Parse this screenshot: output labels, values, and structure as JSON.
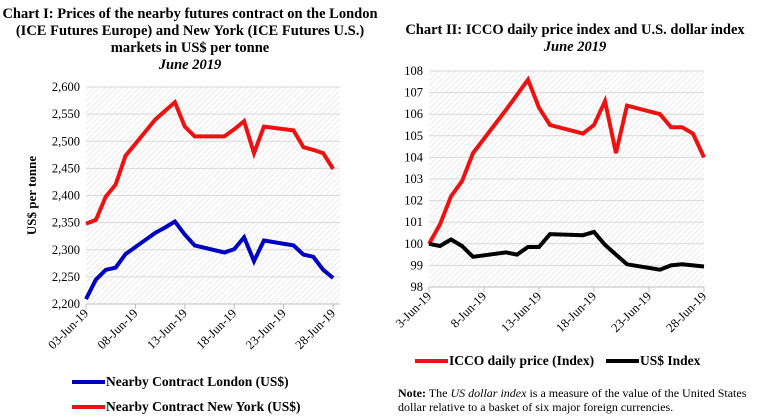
{
  "chart_data": [
    {
      "type": "line",
      "title": "Chart I: Prices of the nearby futures contract on the London (ICE Futures Europe) and New York (ICE Futures U.S.) markets in US$ per tonne",
      "subtitle": "June 2019",
      "xlabel": "",
      "ylabel": "US$ per tonne",
      "ylim": [
        2200,
        2600
      ],
      "yticks": [
        "2,200",
        "2,250",
        "2,300",
        "2,350",
        "2,400",
        "2,450",
        "2,500",
        "2,550",
        "2,600"
      ],
      "ytick_values": [
        2200,
        2250,
        2300,
        2350,
        2400,
        2450,
        2500,
        2550,
        2600
      ],
      "xticks": [
        "03-Jun-19",
        "08-Jun-19",
        "13-Jun-19",
        "18-Jun-19",
        "23-Jun-19",
        "28-Jun-19"
      ],
      "xtick_values": [
        "2019-06-03",
        "2019-06-08",
        "2019-06-13",
        "2019-06-18",
        "2019-06-23",
        "2019-06-28"
      ],
      "grid": "horizontal",
      "legend_placement": "bottom",
      "x": [
        "2019-06-03",
        "2019-06-04",
        "2019-06-05",
        "2019-06-06",
        "2019-06-07",
        "2019-06-10",
        "2019-06-11",
        "2019-06-12",
        "2019-06-13",
        "2019-06-14",
        "2019-06-17",
        "2019-06-18",
        "2019-06-19",
        "2019-06-20",
        "2019-06-21",
        "2019-06-24",
        "2019-06-25",
        "2019-06-26",
        "2019-06-27",
        "2019-06-28"
      ],
      "series": [
        {
          "name": "Nearby Contract London (US$)",
          "color": "#0000c0",
          "values": [
            2209,
            2245,
            2263,
            2267,
            2292,
            2331,
            2341,
            2352,
            2328,
            2308,
            2295,
            2301,
            2323,
            2279,
            2317,
            2308,
            2291,
            2287,
            2263,
            2248
          ]
        },
        {
          "name": "Nearby Contract New York (US$)",
          "color": "#ee1111",
          "values": [
            2348,
            2355,
            2398,
            2420,
            2473,
            2540,
            2556,
            2572,
            2527,
            2509,
            2509,
            2522,
            2537,
            2478,
            2527,
            2520,
            2489,
            2484,
            2478,
            2449
          ]
        }
      ]
    },
    {
      "type": "line",
      "title": "Chart II: ICCO daily price index and U.S. dollar index",
      "subtitle": "June 2019",
      "xlabel": "",
      "ylabel": "",
      "ylim": [
        98,
        108
      ],
      "yticks": [
        "98",
        "99",
        "100",
        "101",
        "102",
        "103",
        "104",
        "105",
        "106",
        "107",
        "108"
      ],
      "ytick_values": [
        98,
        99,
        100,
        101,
        102,
        103,
        104,
        105,
        106,
        107,
        108
      ],
      "xticks": [
        "3-Jun-19",
        "8-Jun-19",
        "13-Jun-19",
        "18-Jun-19",
        "23-Jun-19",
        "28-Jun-19"
      ],
      "xtick_values": [
        "2019-06-03",
        "2019-06-08",
        "2019-06-13",
        "2019-06-18",
        "2019-06-23",
        "2019-06-28"
      ],
      "grid": "horizontal",
      "legend_placement": "bottom",
      "x": [
        "2019-06-03",
        "2019-06-04",
        "2019-06-05",
        "2019-06-06",
        "2019-06-07",
        "2019-06-10",
        "2019-06-11",
        "2019-06-12",
        "2019-06-13",
        "2019-06-14",
        "2019-06-17",
        "2019-06-18",
        "2019-06-19",
        "2019-06-20",
        "2019-06-21",
        "2019-06-24",
        "2019-06-25",
        "2019-06-26",
        "2019-06-27",
        "2019-06-28"
      ],
      "series": [
        {
          "name": "ICCO daily price (Index)",
          "color": "#ee1111",
          "values": [
            100.0,
            100.9,
            102.2,
            102.9,
            104.2,
            106.2,
            106.9,
            107.6,
            106.3,
            105.5,
            105.1,
            105.5,
            106.6,
            104.2,
            106.4,
            106.0,
            105.4,
            105.4,
            105.1,
            104.0
          ]
        },
        {
          "name": "US$ Index",
          "color": "#000000",
          "values": [
            100.0,
            99.9,
            100.2,
            99.9,
            99.4,
            99.6,
            99.5,
            99.85,
            99.85,
            100.45,
            100.4,
            100.55,
            99.95,
            99.5,
            99.05,
            98.8,
            99.0,
            99.05,
            99.0,
            98.95
          ]
        }
      ]
    }
  ],
  "note": {
    "label": "Note:",
    "pre": " The ",
    "em": "US dollar index",
    "post": " is a measure of the value of the United States dollar relative to a basket of six major foreign currencies."
  }
}
